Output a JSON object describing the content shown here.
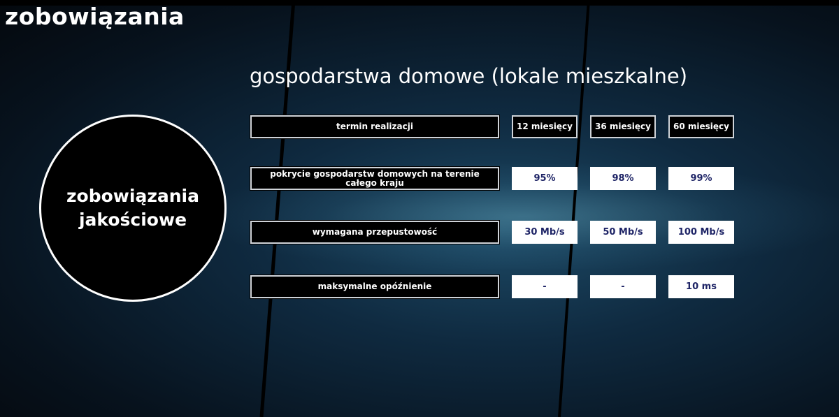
{
  "header": {
    "title": "zobowiązania"
  },
  "circle": {
    "line1": "zobowiązania",
    "line2": "jakościowe"
  },
  "subtitle": "gospodarstwa domowe (lokale mieszkalne)",
  "table": {
    "header": {
      "label": "termin realizacji",
      "columns": [
        "12 miesięcy",
        "36 miesięcy",
        "60 miesięcy"
      ]
    },
    "rows": [
      {
        "label": "pokrycie gospodarstw domowych na terenie całego kraju",
        "values": [
          "95%",
          "98%",
          "99%"
        ]
      },
      {
        "label": "wymagana przepustowość",
        "values": [
          "30 Mb/s",
          "50 Mb/s",
          "100 Mb/s"
        ]
      },
      {
        "label": "maksymalne opóźnienie",
        "values": [
          "-",
          "-",
          "10 ms"
        ]
      }
    ]
  },
  "colors": {
    "value_text": "#1e2466",
    "background": "#0f2a40"
  }
}
